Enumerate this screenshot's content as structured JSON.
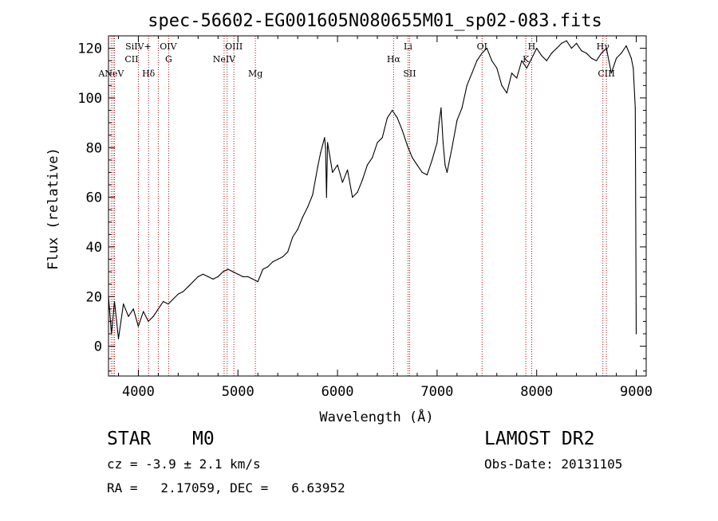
{
  "chart_data": {
    "type": "line",
    "title": "spec-56602-EG001605N080655M01_sp02-083.fits",
    "xlabel": "Wavelength (Å)",
    "ylabel": "Flux (relative)",
    "xlim": [
      3700,
      9100
    ],
    "ylim": [
      -12,
      125
    ],
    "xticks": [
      4000,
      5000,
      6000,
      7000,
      8000,
      9000
    ],
    "yticks": [
      0,
      20,
      40,
      60,
      80,
      100,
      120
    ],
    "grid": false,
    "series": [
      {
        "color": "#000000",
        "x": [
          3700,
          3730,
          3760,
          3800,
          3850,
          3900,
          3950,
          4000,
          4050,
          4100,
          4150,
          4200,
          4250,
          4300,
          4350,
          4400,
          4450,
          4500,
          4550,
          4600,
          4650,
          4700,
          4750,
          4800,
          4850,
          4900,
          4950,
          5000,
          5050,
          5100,
          5150,
          5200,
          5250,
          5300,
          5350,
          5400,
          5450,
          5500,
          5550,
          5600,
          5650,
          5700,
          5750,
          5800,
          5830,
          5850,
          5870,
          5880,
          5890,
          5900,
          5950,
          6000,
          6050,
          6100,
          6150,
          6200,
          6250,
          6300,
          6350,
          6400,
          6450,
          6500,
          6550,
          6600,
          6650,
          6700,
          6750,
          6800,
          6850,
          6900,
          6950,
          7000,
          7020,
          7040,
          7060,
          7080,
          7100,
          7150,
          7200,
          7250,
          7300,
          7350,
          7400,
          7450,
          7500,
          7550,
          7600,
          7650,
          7700,
          7750,
          7800,
          7850,
          7900,
          7950,
          8000,
          8050,
          8100,
          8150,
          8200,
          8250,
          8300,
          8350,
          8400,
          8450,
          8500,
          8550,
          8600,
          8650,
          8700,
          8750,
          8800,
          8850,
          8900,
          8950,
          8970,
          8990,
          9000
        ],
        "y": [
          20,
          5,
          18,
          3,
          17,
          12,
          15,
          8,
          14,
          10,
          12,
          15,
          18,
          17,
          19,
          21,
          22,
          24,
          26,
          28,
          29,
          28,
          27,
          28,
          30,
          31,
          30,
          29,
          28,
          28,
          27,
          26,
          31,
          32,
          34,
          35,
          36,
          38,
          44,
          47,
          52,
          56,
          61,
          72,
          78,
          81,
          84,
          80,
          60,
          82,
          70,
          73,
          66,
          71,
          60,
          62,
          67,
          73,
          76,
          82,
          84,
          92,
          95,
          92,
          87,
          81,
          76,
          73,
          70,
          69,
          75,
          82,
          90,
          96,
          82,
          73,
          70,
          80,
          91,
          96,
          105,
          110,
          115,
          118,
          120,
          115,
          112,
          105,
          102,
          110,
          108,
          115,
          112,
          116,
          120,
          117,
          115,
          118,
          120,
          122,
          123,
          120,
          122,
          119,
          118,
          116,
          115,
          118,
          120,
          110,
          116,
          118,
          121,
          116,
          112,
          96,
          5
        ]
      }
    ],
    "annotations": [
      {
        "row": "top",
        "label": "SiIV+",
        "x": 4000
      },
      {
        "row": "top",
        "label": "OIV",
        "x": 4300
      },
      {
        "row": "top",
        "label": "OIII",
        "x": 4959
      },
      {
        "row": "top",
        "label": "Li",
        "x": 6708
      },
      {
        "row": "top",
        "label": "OI",
        "x": 7452
      },
      {
        "row": "top",
        "label": "H",
        "x": 7950
      },
      {
        "row": "top",
        "label": "Hγ",
        "x": 8665
      },
      {
        "row": "mid",
        "label": "CII",
        "x": 3932
      },
      {
        "row": "mid",
        "label": "G",
        "x": 4304
      },
      {
        "row": "mid",
        "label": "NeIV",
        "x": 4861
      },
      {
        "row": "mid",
        "label": "Hα",
        "x": 6563
      },
      {
        "row": "mid",
        "label": "K",
        "x": 7891
      },
      {
        "row": "low",
        "label": "ANeV",
        "x": 3727
      },
      {
        "row": "low",
        "label": "Hδ",
        "x": 4102
      },
      {
        "row": "low",
        "label": "Mg",
        "x": 5175
      },
      {
        "row": "low",
        "label": "SII",
        "x": 6724
      },
      {
        "row": "low",
        "label": "CIII",
        "x": 8700
      }
    ],
    "marker_lines": [
      3727,
      3746,
      3760,
      4000,
      4102,
      4200,
      4304,
      4861,
      4892,
      4959,
      5175,
      6563,
      6708,
      6724,
      7452,
      7891,
      7950,
      8665,
      8700
    ]
  },
  "footer": {
    "object_class": "STAR",
    "subclass": "M0",
    "survey": "LAMOST DR2",
    "cz": "cz = -3.9 ± 2.1 km/s",
    "obs_date": "Obs-Date: 20131105",
    "coords": "RA =   2.17059, DEC =   6.63952"
  }
}
